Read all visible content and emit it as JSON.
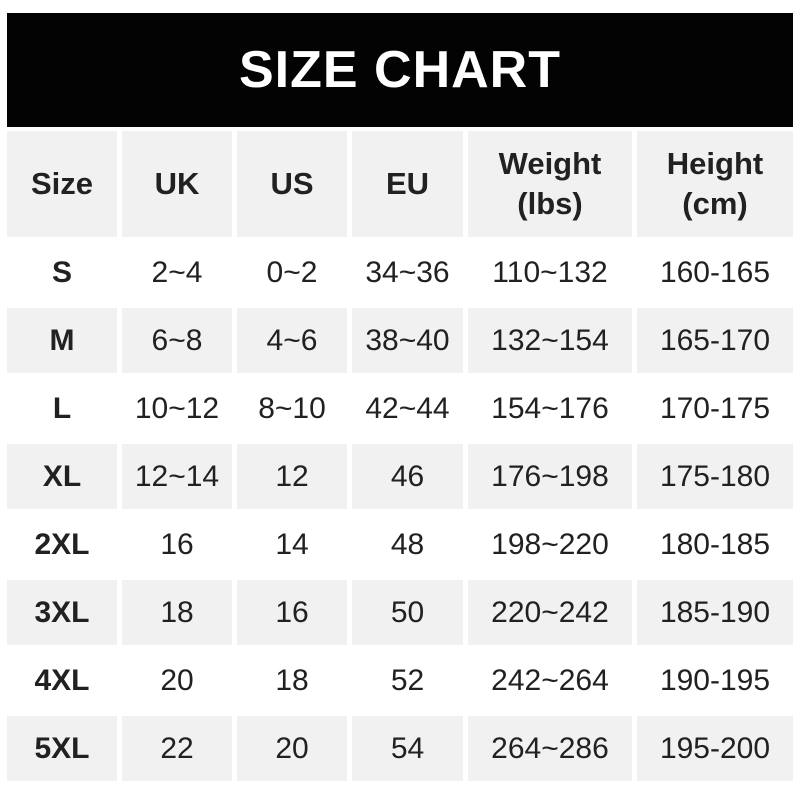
{
  "banner": {
    "title": "SIZE CHART"
  },
  "colors": {
    "banner_bg": "#000000",
    "banner_text": "#ffffff",
    "shaded_row_bg": "#f1f1f1",
    "row_bg": "#ffffff",
    "text": "#212121"
  },
  "table": {
    "header_labels": [
      "Size",
      "UK",
      "US",
      "EU",
      "Weight\n(lbs)",
      "Height\n(cm)"
    ]
  },
  "chart_data": {
    "type": "table",
    "title": "SIZE CHART",
    "columns": [
      "Size",
      "UK",
      "US",
      "EU",
      "Weight (lbs)",
      "Height (cm)"
    ],
    "rows": [
      [
        "S",
        "2~4",
        "0~2",
        "34~36",
        "110~132",
        "160-165"
      ],
      [
        "M",
        "6~8",
        "4~6",
        "38~40",
        "132~154",
        "165-170"
      ],
      [
        "L",
        "10~12",
        "8~10",
        "42~44",
        "154~176",
        "170-175"
      ],
      [
        "XL",
        "12~14",
        "12",
        "46",
        "176~198",
        "175-180"
      ],
      [
        "2XL",
        "16",
        "14",
        "48",
        "198~220",
        "180-185"
      ],
      [
        "3XL",
        "18",
        "16",
        "50",
        "220~242",
        "185-190"
      ],
      [
        "4XL",
        "20",
        "18",
        "52",
        "242~264",
        "190-195"
      ],
      [
        "5XL",
        "22",
        "20",
        "54",
        "264~286",
        "195-200"
      ]
    ]
  }
}
